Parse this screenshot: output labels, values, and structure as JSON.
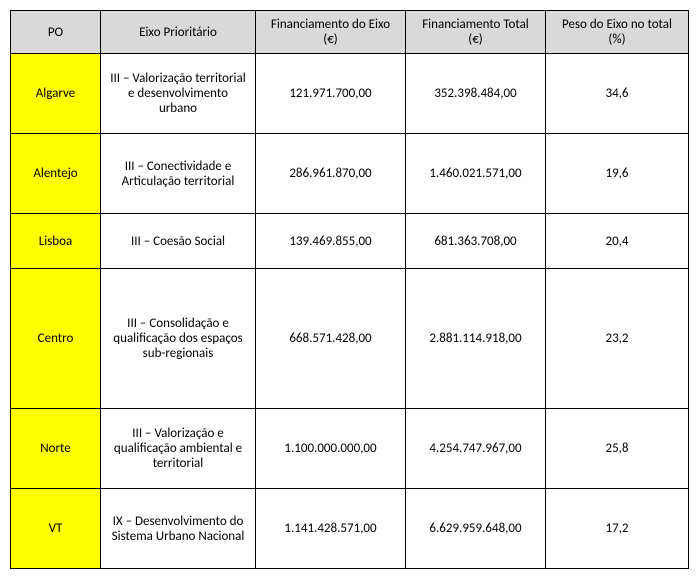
{
  "headers": {
    "po": "PO",
    "eixo": "Eixo Prioritário",
    "fin_eixo": "Financiamento do Eixo (€)",
    "fin_total": "Financiamento Total (€)",
    "peso": "Peso do Eixo no total (%)"
  },
  "rows": [
    {
      "po": "Algarve",
      "eixo": "III – Valorização territorial e desenvolvimento urbano",
      "fin_eixo": "121.971.700,00",
      "fin_total": "352.398.484,00",
      "peso": "34,6",
      "height_class": "med"
    },
    {
      "po": "Alentejo",
      "eixo": "III – Conectividade e Articulação territorial",
      "fin_eixo": "286.961.870,00",
      "fin_total": "1.460.021.571,00",
      "peso": "19,6",
      "height_class": "med"
    },
    {
      "po": "Lisboa",
      "eixo": "III – Coesão Social",
      "fin_eixo": "139.469.855,00",
      "fin_total": "681.363.708,00",
      "peso": "20,4",
      "height_class": "short"
    },
    {
      "po": "Centro",
      "eixo": "III – Consolidação e qualificação dos espaços sub-regionais",
      "fin_eixo": "668.571.428,00",
      "fin_total": "2.881.114.918,00",
      "peso": "23,2",
      "height_class": "tall"
    },
    {
      "po": "Norte",
      "eixo": "III – Valorização e qualificação ambiental e territorial",
      "fin_eixo": "1.100.000.000,00",
      "fin_total": "4.254.747.967,00",
      "peso": "25,8",
      "height_class": "med"
    },
    {
      "po": "VT",
      "eixo": "IX – Desenvolvimento do Sistema Urbano Nacional",
      "fin_eixo": "1.141.428.571,00",
      "fin_total": "6.629.959.648,00",
      "peso": "17,2",
      "height_class": "med"
    }
  ],
  "colors": {
    "header_bg": "#d9d9d9",
    "po_bg": "#ffff00",
    "border": "#000000",
    "page_bg": "#ffffff"
  }
}
